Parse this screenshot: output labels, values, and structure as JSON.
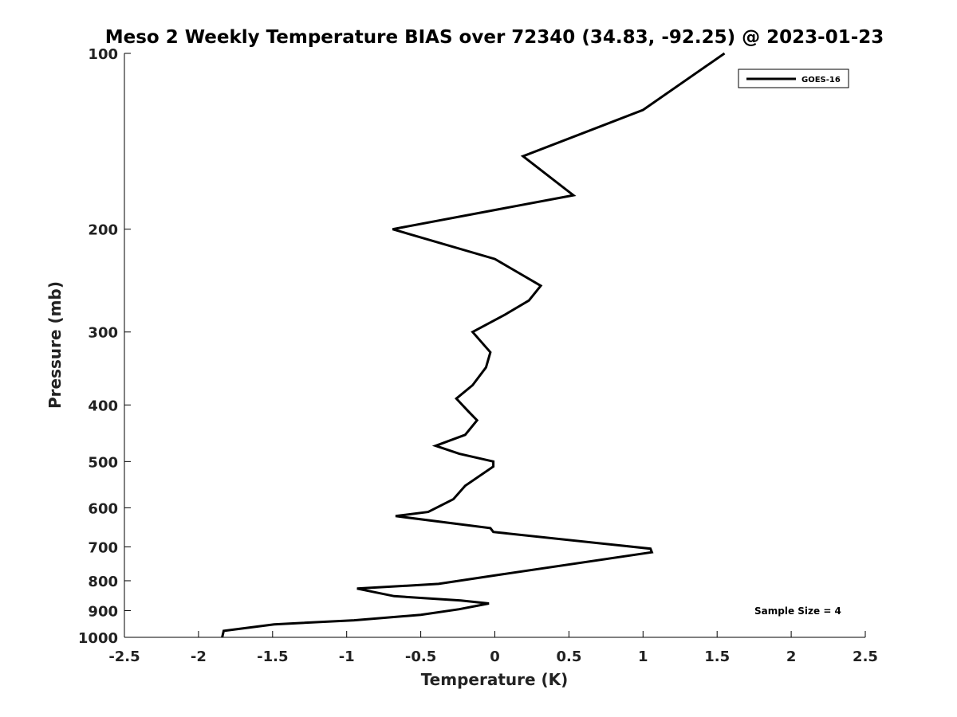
{
  "chart_data": {
    "type": "line",
    "title": "Meso 2 Weekly Temperature BIAS over 72340 (34.83, -92.25) @ 2023-01-23",
    "xlabel": "Temperature (K)",
    "ylabel": "Pressure (mb)",
    "xlim": [
      -2.5,
      2.5
    ],
    "ylim": [
      1000,
      100
    ],
    "y_scale": "log",
    "y_reversed": true,
    "grid": false,
    "x_ticks": [
      -2.5,
      -2,
      -1.5,
      -1,
      -0.5,
      0,
      0.5,
      1,
      1.5,
      2,
      2.5
    ],
    "x_tick_labels": [
      "-2.5",
      "-2",
      "-1.5",
      "-1",
      "-0.5",
      "0",
      "0.5",
      "1",
      "1.5",
      "2",
      "2.5"
    ],
    "y_ticks": [
      100,
      200,
      300,
      400,
      500,
      600,
      700,
      800,
      900,
      1000
    ],
    "y_tick_labels": [
      "100",
      "200",
      "300",
      "400",
      "500",
      "600",
      "700",
      "800",
      "900",
      "1000"
    ],
    "legend": {
      "position": "top-right",
      "entries": [
        "GOES-16"
      ]
    },
    "annotation": "Sample Size = 4",
    "series": [
      {
        "name": "GOES-16",
        "color": "#000000",
        "points": [
          [
            1.55,
            100
          ],
          [
            1.0,
            125
          ],
          [
            0.19,
            150
          ],
          [
            0.53,
            175
          ],
          [
            -0.69,
            200
          ],
          [
            0.0,
            225
          ],
          [
            0.31,
            250
          ],
          [
            0.23,
            265
          ],
          [
            0.07,
            280
          ],
          [
            -0.15,
            300
          ],
          [
            -0.03,
            325
          ],
          [
            -0.06,
            345
          ],
          [
            -0.15,
            370
          ],
          [
            -0.26,
            390
          ],
          [
            -0.18,
            410
          ],
          [
            -0.12,
            425
          ],
          [
            -0.2,
            450
          ],
          [
            -0.4,
            470
          ],
          [
            -0.24,
            485
          ],
          [
            -0.01,
            500
          ],
          [
            -0.01,
            510
          ],
          [
            -0.2,
            550
          ],
          [
            -0.28,
            580
          ],
          [
            -0.45,
            610
          ],
          [
            -0.67,
            620
          ],
          [
            -0.03,
            650
          ],
          [
            -0.01,
            660
          ],
          [
            1.05,
            705
          ],
          [
            1.06,
            715
          ],
          [
            0.05,
            780
          ],
          [
            -0.38,
            810
          ],
          [
            -0.93,
            825
          ],
          [
            -0.68,
            850
          ],
          [
            -0.23,
            865
          ],
          [
            -0.04,
            875
          ],
          [
            -0.24,
            895
          ],
          [
            -0.5,
            915
          ],
          [
            -0.95,
            935
          ],
          [
            -1.49,
            950
          ],
          [
            -1.83,
            975
          ],
          [
            -1.84,
            1000
          ]
        ]
      }
    ]
  }
}
